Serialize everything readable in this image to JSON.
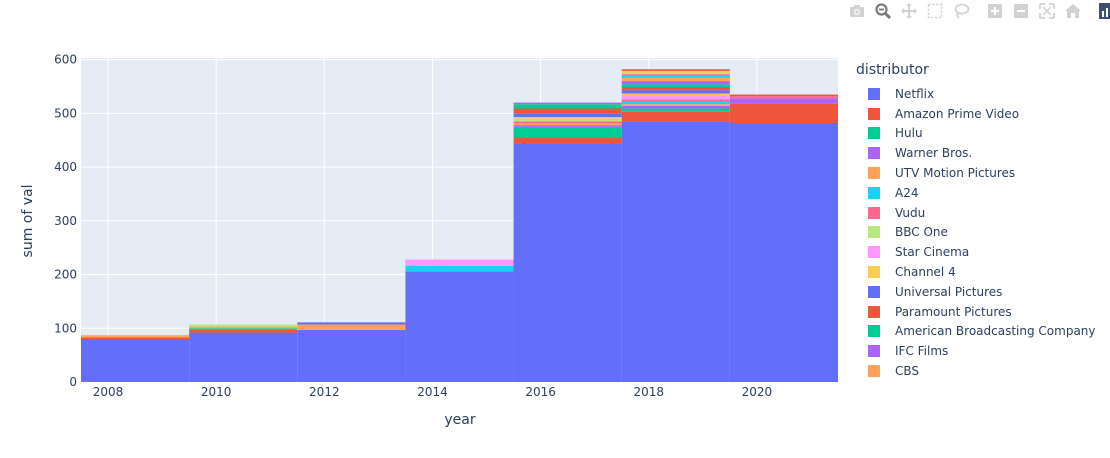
{
  "modebar": {
    "buttons": [
      {
        "name": "camera-icon",
        "title": "Download plot as a png"
      },
      {
        "name": "zoom-icon",
        "title": "Zoom"
      },
      {
        "name": "pan-icon",
        "title": "Pan"
      },
      {
        "name": "box-select-icon",
        "title": "Box Select"
      },
      {
        "name": "lasso-select-icon",
        "title": "Lasso Select"
      },
      {
        "name": "zoom-in-icon",
        "title": "Zoom in"
      },
      {
        "name": "zoom-out-icon",
        "title": "Zoom out"
      },
      {
        "name": "autoscale-icon",
        "title": "Autoscale"
      },
      {
        "name": "reset-axes-icon",
        "title": "Reset axes"
      },
      {
        "name": "plotly-logo-icon",
        "title": "Produced with Plotly"
      }
    ],
    "active": "zoom-icon",
    "colors": {
      "inactive": "#d2d2d2",
      "active": "#7a7a7a",
      "logo": "#3f4f75"
    }
  },
  "chart_data": {
    "type": "bar",
    "barmode": "stack",
    "xlabel": "year",
    "ylabel": "sum of val",
    "legend_title": "distributor",
    "legend_position": "right",
    "grid": true,
    "colors": {
      "plot_bg": "#e5ecf6",
      "grid": "#ffffff",
      "text": "#2a3f5f"
    },
    "xlim": [
      2007.5,
      2021.5
    ],
    "ylim": [
      0,
      603
    ],
    "xticks": [
      2008,
      2010,
      2012,
      2014,
      2016,
      2018,
      2020
    ],
    "yticks": [
      0,
      100,
      200,
      300,
      400,
      500,
      600
    ],
    "bin_width": 2,
    "categories": [
      "2008",
      "2010",
      "2012",
      "2014",
      "2016",
      "2018",
      "2020"
    ],
    "bin_starts": [
      2007.5,
      2009.5,
      2011.5,
      2013.5,
      2015.5,
      2017.5,
      2019.5
    ],
    "series": [
      {
        "name": "Netflix",
        "color": "#636efa",
        "values": [
          80,
          92,
          97,
          206,
          443,
          485,
          482
        ]
      },
      {
        "name": "Amazon Prime Video",
        "color": "#ef553b",
        "values": [
          3,
          5,
          0,
          0,
          12,
          18,
          36
        ]
      },
      {
        "name": "Hulu",
        "color": "#00cc96",
        "values": [
          0,
          3,
          0,
          0,
          20,
          6,
          0
        ]
      },
      {
        "name": "Warner Bros.",
        "color": "#ab63fa",
        "values": [
          0,
          0,
          0,
          0,
          3,
          5,
          10
        ]
      },
      {
        "name": "UTV Motion Pictures",
        "color": "#ffa15a",
        "values": [
          2,
          3,
          10,
          0,
          4,
          3,
          0
        ]
      },
      {
        "name": "A24",
        "color": "#19d3f3",
        "values": [
          0,
          0,
          0,
          10,
          0,
          5,
          0
        ]
      },
      {
        "name": "Vudu",
        "color": "#ff6692",
        "values": [
          0,
          0,
          0,
          0,
          3,
          4,
          4
        ]
      },
      {
        "name": "BBC One",
        "color": "#b6e880",
        "values": [
          0,
          4,
          0,
          0,
          3,
          0,
          0
        ]
      },
      {
        "name": "Star Cinema",
        "color": "#ff97ff",
        "values": [
          0,
          0,
          0,
          12,
          2,
          8,
          0
        ]
      },
      {
        "name": "Channel 4",
        "color": "#fecb52",
        "values": [
          0,
          0,
          0,
          0,
          3,
          3,
          0
        ]
      },
      {
        "name": "Universal Pictures",
        "color": "#636efa",
        "values": [
          0,
          0,
          4,
          0,
          6,
          6,
          0
        ]
      },
      {
        "name": "Paramount Pictures",
        "color": "#ef553b",
        "values": [
          0,
          0,
          0,
          0,
          10,
          6,
          3
        ]
      },
      {
        "name": "American Broadcasting Company",
        "color": "#00cc96",
        "values": [
          0,
          0,
          0,
          0,
          8,
          5,
          0
        ]
      },
      {
        "name": "IFC Films",
        "color": "#ab63fa",
        "values": [
          0,
          0,
          0,
          0,
          3,
          6,
          0
        ]
      },
      {
        "name": "CBS",
        "color": "#ffa15a",
        "values": [
          2,
          0,
          0,
          0,
          0,
          6,
          0
        ]
      },
      {
        "name": "",
        "color": "#19d3f3",
        "values": [
          0,
          0,
          0,
          0,
          0,
          4,
          0
        ]
      },
      {
        "name": "",
        "color": "#ff6692",
        "values": [
          0,
          0,
          0,
          0,
          0,
          3,
          0
        ]
      },
      {
        "name": "",
        "color": "#b6e880",
        "values": [
          0,
          0,
          0,
          0,
          0,
          3,
          0
        ]
      },
      {
        "name": "",
        "color": "#fecb52",
        "values": [
          0,
          0,
          0,
          0,
          0,
          3,
          0
        ]
      },
      {
        "name": "",
        "color": "#ef553b",
        "values": [
          0,
          0,
          0,
          0,
          0,
          3,
          0
        ]
      }
    ]
  }
}
